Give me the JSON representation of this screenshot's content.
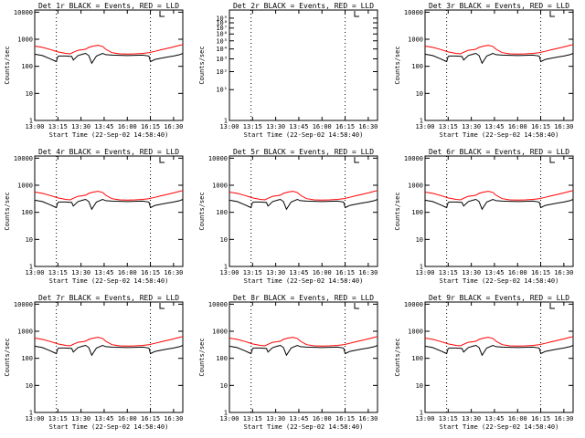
{
  "chart_data": {
    "type": "line",
    "layout": "3x3 grid of panels",
    "x_tick_labels": [
      "13:00",
      "13:15",
      "13:30",
      "13:45",
      "16:00",
      "16:15",
      "16:30"
    ],
    "x_tick_minutes": [
      0,
      15,
      30,
      45,
      60,
      75,
      90
    ],
    "x_range_minutes": [
      0,
      96
    ],
    "xlabel": "Start Time (22-Sep-02 14:58:40)",
    "ylabel": "Counts/sec",
    "yscale": "log",
    "series_colors": {
      "events": "#000000",
      "lld": "#ff0000"
    },
    "vertical_dotted_lines_minutes": [
      14,
      75
    ],
    "standard": {
      "ylim": [
        1,
        12000
      ],
      "y_tick_values": [
        1,
        10,
        100,
        1000,
        10000
      ],
      "y_tick_labels": [
        "1",
        "10",
        "100",
        "1000",
        "10000"
      ],
      "lld": [
        [
          0,
          560
        ],
        [
          5,
          500
        ],
        [
          10,
          420
        ],
        [
          15,
          340
        ],
        [
          20,
          300
        ],
        [
          23,
          290
        ],
        [
          25,
          330
        ],
        [
          28,
          390
        ],
        [
          31,
          410
        ],
        [
          33,
          430
        ],
        [
          35,
          500
        ],
        [
          38,
          560
        ],
        [
          41,
          600
        ],
        [
          44,
          540
        ],
        [
          46,
          430
        ],
        [
          50,
          320
        ],
        [
          55,
          290
        ],
        [
          60,
          285
        ],
        [
          65,
          290
        ],
        [
          70,
          300
        ],
        [
          74,
          320
        ],
        [
          78,
          360
        ],
        [
          82,
          410
        ],
        [
          86,
          460
        ],
        [
          90,
          520
        ],
        [
          94,
          600
        ],
        [
          96,
          640
        ]
      ],
      "events": [
        [
          0,
          280
        ],
        [
          5,
          250
        ],
        [
          10,
          190
        ],
        [
          14,
          150
        ],
        [
          15,
          230
        ],
        [
          16,
          240
        ],
        [
          20,
          240
        ],
        [
          24,
          230
        ],
        [
          25,
          170
        ],
        [
          28,
          250
        ],
        [
          31,
          280
        ],
        [
          33,
          300
        ],
        [
          35,
          250
        ],
        [
          37,
          130
        ],
        [
          40,
          240
        ],
        [
          44,
          300
        ],
        [
          46,
          270
        ],
        [
          50,
          260
        ],
        [
          55,
          255
        ],
        [
          60,
          250
        ],
        [
          65,
          255
        ],
        [
          70,
          260
        ],
        [
          74,
          240
        ],
        [
          75,
          150
        ],
        [
          78,
          180
        ],
        [
          82,
          200
        ],
        [
          86,
          220
        ],
        [
          90,
          240
        ],
        [
          94,
          270
        ],
        [
          96,
          300
        ]
      ]
    },
    "panels": [
      {
        "title": "Det 1r BLACK = Events, RED = LLD",
        "kind": "standard"
      },
      {
        "title": "Det 2r BLACK = Events, RED = LLD",
        "kind": "empty",
        "ylim": [
          1,
          12
        ],
        "y_tick_values": [
          1,
          2,
          3,
          4,
          5,
          6,
          7,
          8,
          9,
          10
        ],
        "y_tick_labels": [
          "1",
          "10¹",
          "10²",
          "10³",
          "10⁴",
          "10⁵",
          "10⁶",
          "10⁷",
          "10⁸",
          "10⁹"
        ]
      },
      {
        "title": "Det 3r BLACK = Events, RED = LLD",
        "kind": "standard"
      },
      {
        "title": "Det 4r BLACK = Events, RED = LLD",
        "kind": "standard"
      },
      {
        "title": "Det 5r BLACK = Events, RED = LLD",
        "kind": "standard"
      },
      {
        "title": "Det 6r BLACK = Events, RED = LLD",
        "kind": "standard"
      },
      {
        "title": "Det 7r BLACK = Events, RED = LLD",
        "kind": "standard"
      },
      {
        "title": "Det 8r BLACK = Events, RED = LLD",
        "kind": "standard"
      },
      {
        "title": "Det 9r BLACK = Events, RED = LLD",
        "kind": "standard"
      }
    ]
  }
}
